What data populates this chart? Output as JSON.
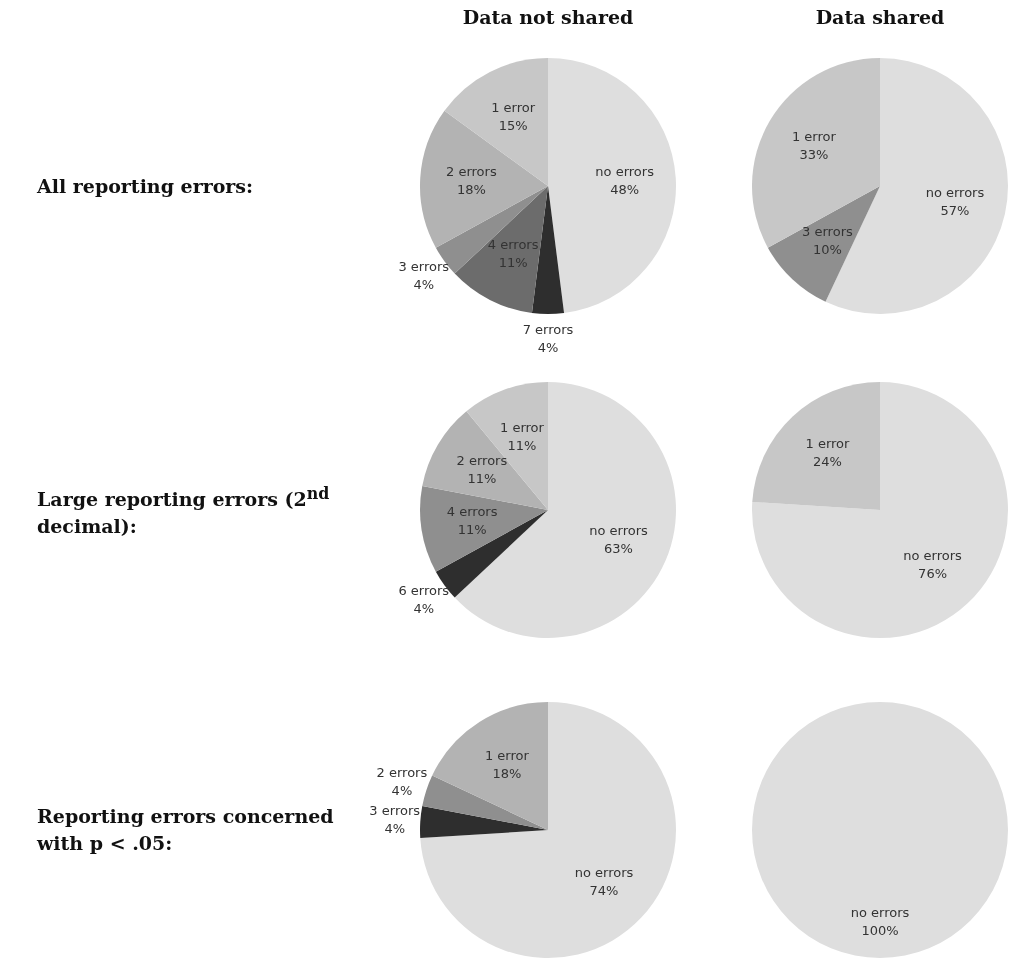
{
  "chart_data": [
    {
      "type": "pie",
      "title": "Data not shared",
      "annotations": [
        "All reporting errors:"
      ],
      "categories": [
        "no errors",
        "7 errors",
        "4 errors",
        "3 errors",
        "2 errors",
        "1 error"
      ],
      "values": [
        48,
        4,
        11,
        4,
        18,
        15
      ],
      "colors": [
        "#dedede",
        "#2e2e2e",
        "#6c6c6c",
        "#8f8f8f",
        "#b3b3b3",
        "#c7c7c7"
      ],
      "value_labels": [
        "48%",
        "4%",
        "11%",
        "4%",
        "18%",
        "15%"
      ]
    },
    {
      "type": "pie",
      "title": "Data shared",
      "categories": [
        "no errors",
        "3 errors",
        "1 error"
      ],
      "values": [
        57,
        10,
        33
      ],
      "colors": [
        "#dedede",
        "#8f8f8f",
        "#c7c7c7"
      ],
      "value_labels": [
        "57%",
        "10%",
        "33%"
      ]
    },
    {
      "type": "pie",
      "annotations": [
        "Large reporting errors (2$^{nd}$ decimal):"
      ],
      "categories": [
        "no errors",
        "6 errors",
        "4 errors",
        "2 errors",
        "1 error"
      ],
      "values": [
        63,
        4,
        11,
        11,
        11
      ],
      "colors": [
        "#dedede",
        "#2e2e2e",
        "#8f8f8f",
        "#b3b3b3",
        "#c7c7c7"
      ],
      "value_labels": [
        "63%",
        "4%",
        "11%",
        "11%",
        "11%"
      ]
    },
    {
      "type": "pie",
      "categories": [
        "no errors",
        "1 error"
      ],
      "values": [
        76,
        24
      ],
      "colors": [
        "#dedede",
        "#c7c7c7"
      ],
      "value_labels": [
        "76%",
        "24%"
      ]
    },
    {
      "type": "pie",
      "annotations": [
        "Reporting errors concerned with p < .05:"
      ],
      "categories": [
        "no errors",
        "3 errors",
        "2 errors",
        "1 error"
      ],
      "values": [
        74,
        4,
        4,
        18
      ],
      "colors": [
        "#dedede",
        "#2e2e2e",
        "#8f8f8f",
        "#b3b3b3"
      ],
      "value_labels": [
        "74%",
        "4%",
        "4%",
        "18%"
      ]
    },
    {
      "type": "pie",
      "categories": [
        "no errors"
      ],
      "values": [
        100
      ],
      "colors": [
        "#dedede"
      ],
      "value_labels": [
        "100%"
      ]
    }
  ]
}
